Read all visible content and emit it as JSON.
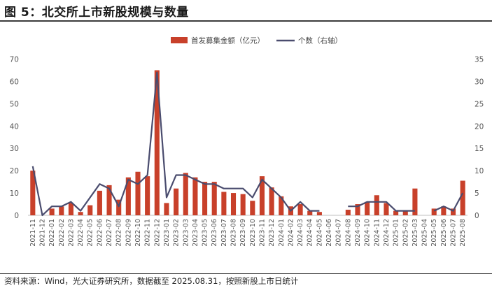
{
  "header": {
    "title": "图 5：北交所上市新股规模与数量"
  },
  "footer": {
    "source": "资料来源：Wind，光大证券研究所，数据截至 2025.08.31，按照新股上市日统计"
  },
  "colors": {
    "bar": "#C8402A",
    "line": "#4A4C6E",
    "axis_text": "#555555",
    "axis_line": "#BFBFBF"
  },
  "chart_data": {
    "type": "bar+line",
    "legend_position": "top-center",
    "grid": false,
    "categories": [
      "2021-11",
      "2021-12",
      "2022-01",
      "2022-02",
      "2022-03",
      "2022-04",
      "2022-05",
      "2022-06",
      "2022-07",
      "2022-08",
      "2022-09",
      "2022-10",
      "2022-11",
      "2022-12",
      "2023-01",
      "2023-02",
      "2023-03",
      "2023-04",
      "2023-05",
      "2023-06",
      "2023-07",
      "2023-08",
      "2023-09",
      "2023-10",
      "2023-11",
      "2023-12",
      "2024-01",
      "2024-02",
      "2024-03",
      "2024-04",
      "2024-05",
      "2024-06",
      "2024-07",
      "2024-08",
      "2024-09",
      "2024-10",
      "2024-11",
      "2024-12",
      "2025-01",
      "2025-02",
      "2025-03",
      "2025-04",
      "2025-05",
      "2025-06",
      "2025-07",
      "2025-08"
    ],
    "left_axis": {
      "min": 0,
      "max": 70,
      "ticks": [
        0,
        10,
        20,
        30,
        40,
        50,
        60,
        70
      ]
    },
    "right_axis": {
      "min": 0,
      "max": 35,
      "ticks": [
        0,
        5,
        10,
        15,
        20,
        25,
        30,
        35
      ]
    },
    "series": [
      {
        "name": "首发募集金额（亿元）",
        "type": "bar",
        "axis": "left",
        "values": [
          20,
          0,
          3,
          4,
          5.5,
          1.5,
          4.5,
          11,
          13.5,
          7,
          17,
          19.5,
          17.5,
          65,
          5.5,
          12,
          19,
          17,
          15,
          15,
          10.5,
          10,
          9.5,
          6.5,
          17.5,
          12.5,
          8.5,
          4,
          5,
          2,
          1.5,
          null,
          null,
          2.5,
          5,
          6,
          9,
          5.5,
          2,
          2,
          12,
          null,
          3,
          4,
          3,
          15.5
        ]
      },
      {
        "name": "个数（右轴）",
        "type": "line",
        "axis": "right",
        "values": [
          11,
          0,
          2,
          2,
          3,
          1,
          4,
          7,
          6,
          2,
          8,
          7,
          9,
          32,
          4,
          9,
          9,
          8,
          7,
          7,
          6,
          6,
          6,
          4,
          8,
          6,
          4,
          1,
          3,
          1,
          1,
          null,
          null,
          2,
          2,
          3,
          3,
          3,
          1,
          1,
          1,
          null,
          1,
          2,
          1,
          5
        ]
      }
    ]
  }
}
